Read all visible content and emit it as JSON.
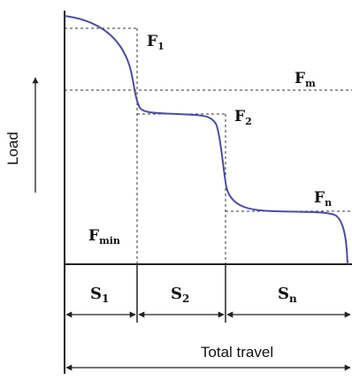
{
  "y_axis_label": "Load",
  "x_axis_label": "Total travel",
  "load_levels": [
    {
      "base": "F",
      "sub": "1"
    },
    {
      "base": "F",
      "sub": "m"
    },
    {
      "base": "F",
      "sub": "2"
    },
    {
      "base": "F",
      "sub": "n"
    },
    {
      "base": "F",
      "sub": "min"
    }
  ],
  "travel_segments": [
    {
      "base": "S",
      "sub": "1"
    },
    {
      "base": "S",
      "sub": "2"
    },
    {
      "base": "S",
      "sub": "n"
    }
  ],
  "colors": {
    "curve": "#4b4e9e",
    "lines": "#222222",
    "dashes": "#333333"
  }
}
